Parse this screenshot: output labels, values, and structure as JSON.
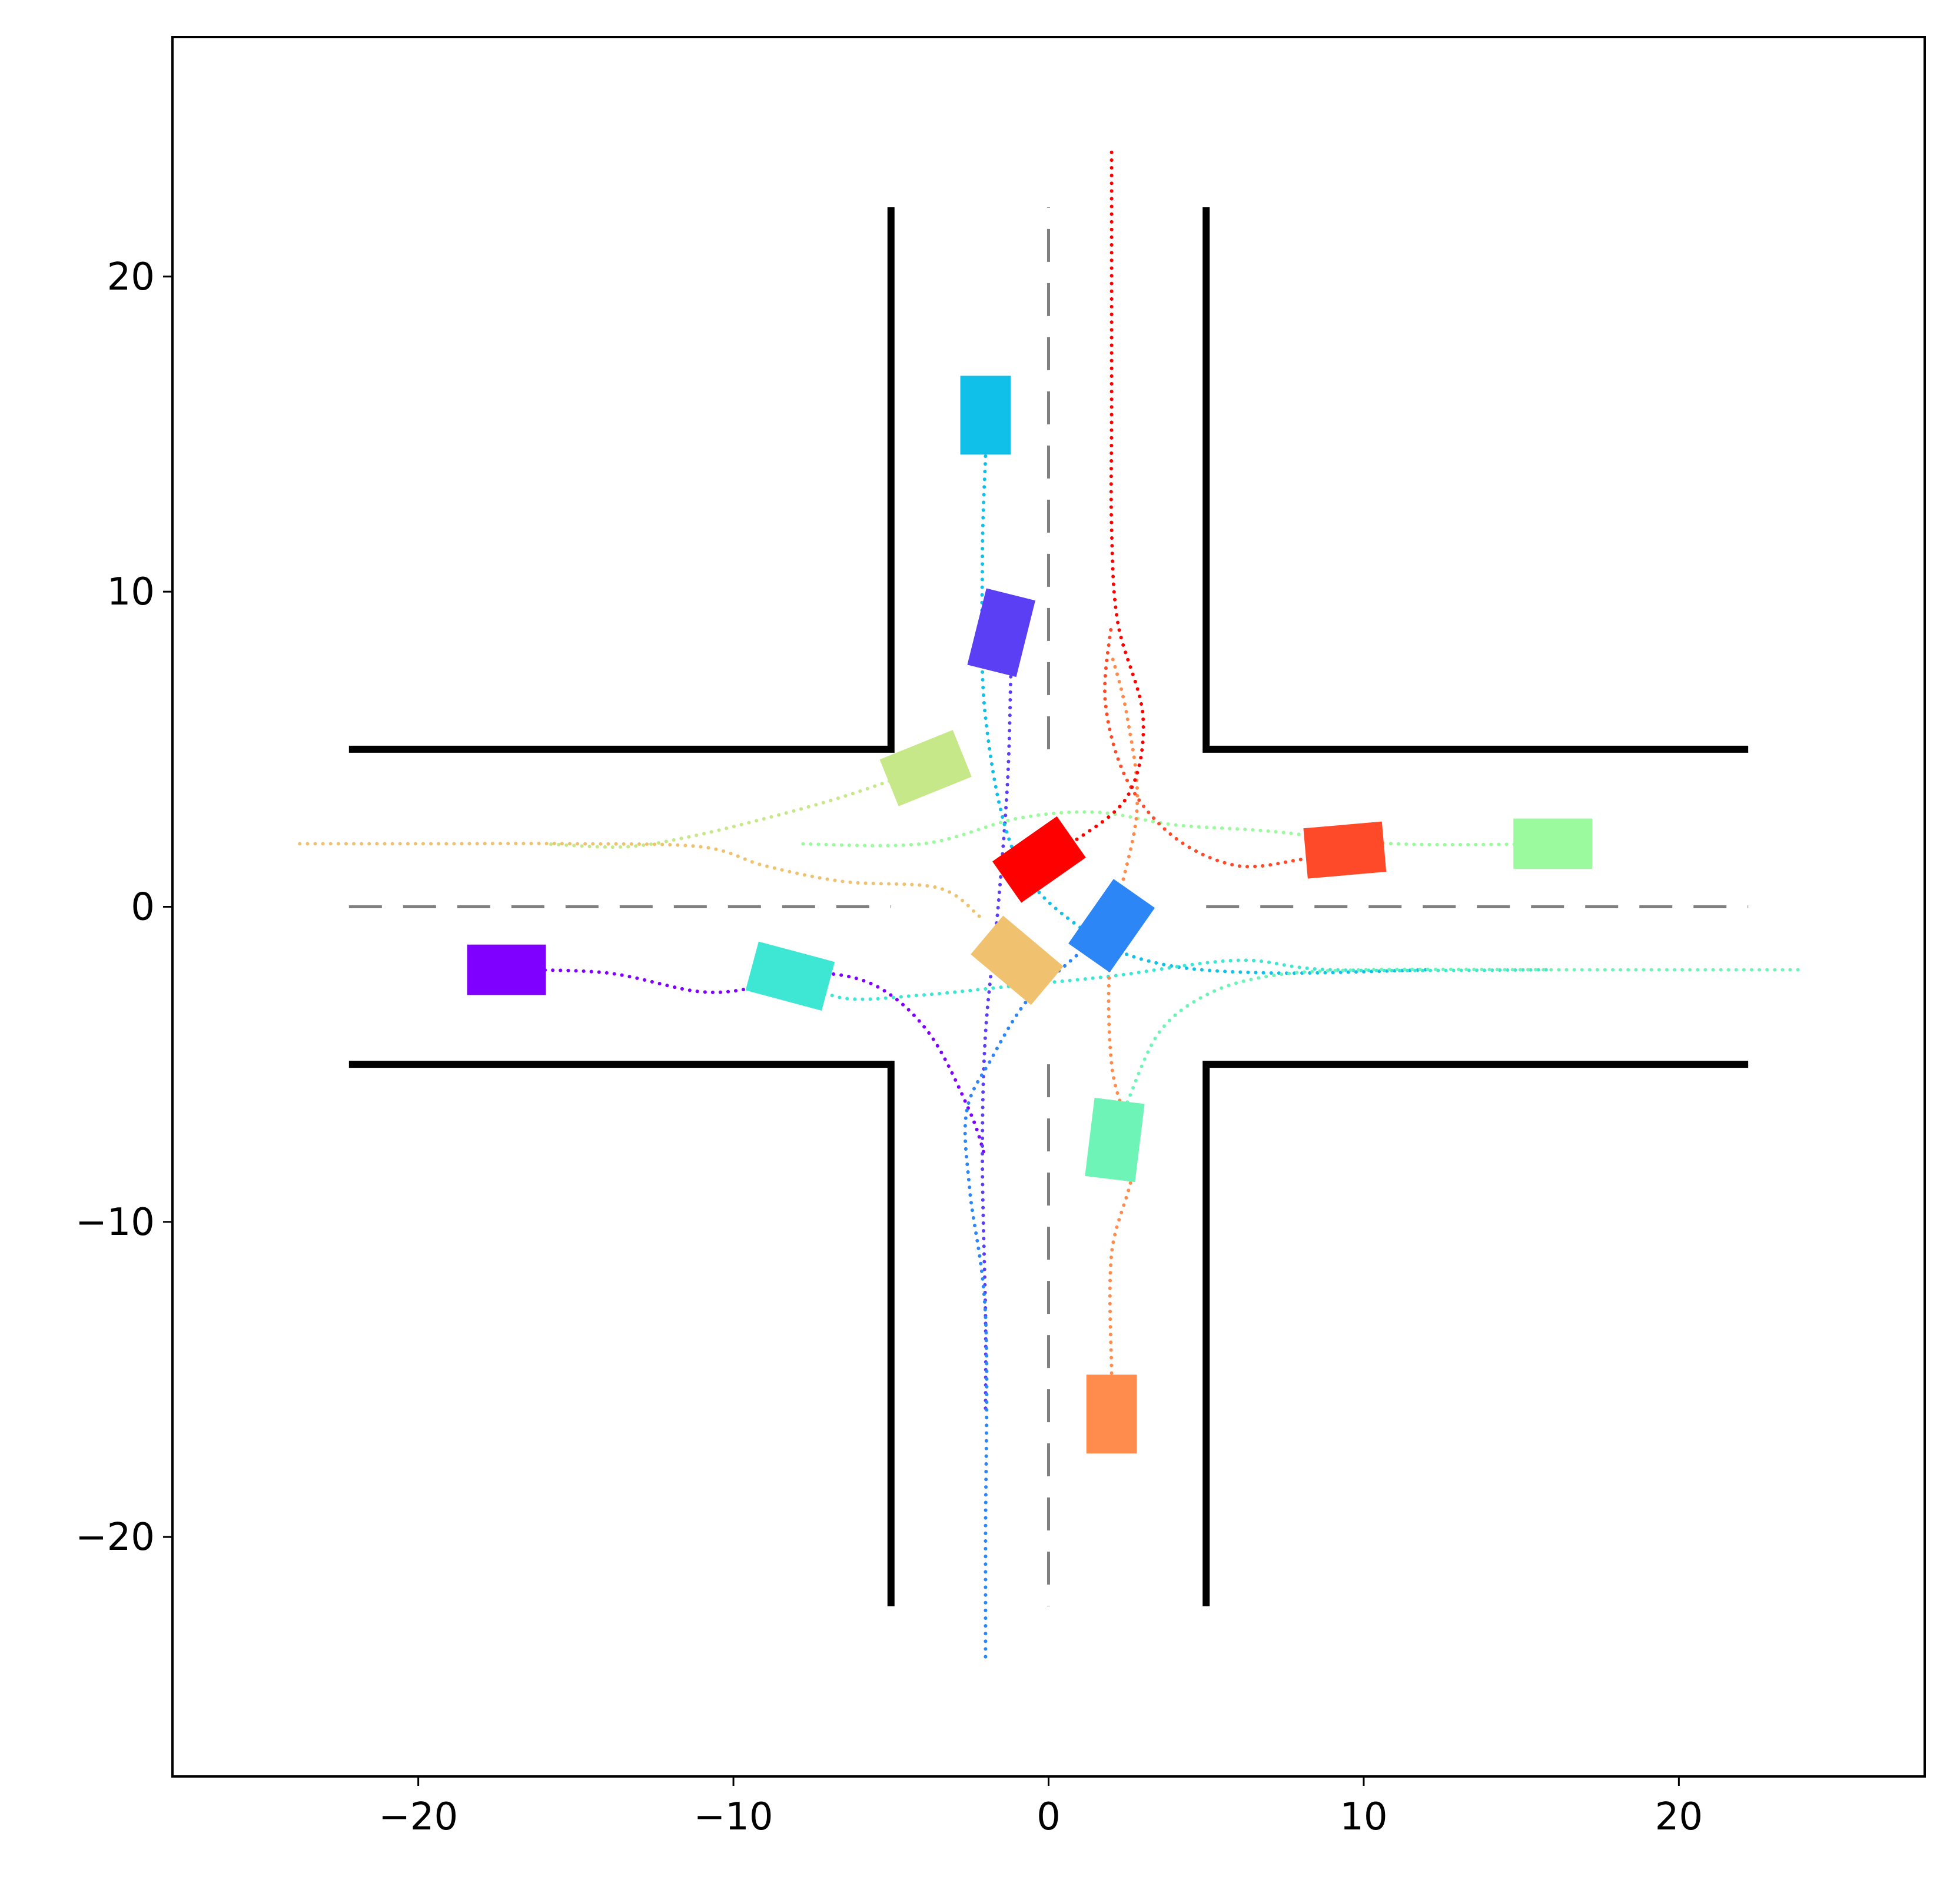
{
  "chart_data": {
    "type": "scatter",
    "title": "",
    "xlabel": "",
    "ylabel": "",
    "xlim": [
      -27.8,
      27.8
    ],
    "ylim": [
      -27.6,
      27.6
    ],
    "grid": false,
    "x_ticks": [
      -20,
      -10,
      0,
      10,
      20
    ],
    "y_ticks": [
      -20,
      -10,
      0,
      10,
      20
    ],
    "x_tick_labels": [
      "−20",
      "−10",
      "0",
      "10",
      "20"
    ],
    "y_tick_labels": [
      "−20",
      "−10",
      "0",
      "10",
      "20"
    ],
    "road_edges": [
      {
        "points": [
          [
            -22.2,
            5
          ],
          [
            -5,
            5
          ],
          [
            -5,
            22.2
          ]
        ]
      },
      {
        "points": [
          [
            5,
            22.2
          ],
          [
            5,
            5
          ],
          [
            22.2,
            5
          ]
        ]
      },
      {
        "points": [
          [
            -22.2,
            -5
          ],
          [
            -5,
            -5
          ],
          [
            -5,
            -22.2
          ]
        ]
      },
      {
        "points": [
          [
            5,
            -22.2
          ],
          [
            5,
            -5
          ],
          [
            22.2,
            -5
          ]
        ]
      }
    ],
    "center_lines": [
      {
        "points": [
          [
            -22.2,
            0
          ],
          [
            -5,
            0
          ]
        ]
      },
      {
        "points": [
          [
            5,
            0
          ],
          [
            22.2,
            0
          ]
        ]
      },
      {
        "points": [
          [
            0,
            5
          ],
          [
            0,
            22.2
          ]
        ]
      },
      {
        "points": [
          [
            0,
            -5
          ],
          [
            0,
            -22.2
          ]
        ]
      }
    ],
    "colors": {
      "road_edge": "#000000",
      "center_line": "#808080"
    },
    "vehicles": [
      {
        "color": "#8000ff",
        "center": [
          -17.2,
          -2.0
        ],
        "heading": 0,
        "path": [
          [
            -17.2,
            -2.0
          ],
          [
            -14,
            -2.1
          ],
          [
            -11,
            -2.7
          ],
          [
            -9,
            -2.5
          ],
          [
            -7.5,
            -2.1
          ],
          [
            -5.5,
            -2.5
          ],
          [
            -3.8,
            -4.0
          ],
          [
            -2.5,
            -6.5
          ],
          [
            -2.0,
            -8.0
          ]
        ]
      },
      {
        "color": "#5a3ff5",
        "center": [
          -1.5,
          8.7
        ],
        "heading": 76,
        "path": [
          [
            -1.2,
            7.3
          ],
          [
            -1.3,
            4.0
          ],
          [
            -1.6,
            0.0
          ],
          [
            -2.0,
            -4.0
          ],
          [
            -2.1,
            -8.0
          ],
          [
            -2.0,
            -13.0
          ],
          [
            -2.0,
            -16.0
          ]
        ]
      },
      {
        "color": "#2d86f5",
        "center": [
          2.0,
          -0.6
        ],
        "heading": 55,
        "path": [
          [
            2.0,
            -0.6
          ],
          [
            0.6,
            -1.8
          ],
          [
            -0.7,
            -3.0
          ],
          [
            -1.8,
            -4.8
          ],
          [
            -2.6,
            -6.5
          ],
          [
            -2.5,
            -9.0
          ],
          [
            -2.0,
            -13.0
          ],
          [
            -2.0,
            -20.0
          ],
          [
            -2.0,
            -24.0
          ]
        ]
      },
      {
        "color": "#10c0e8",
        "center": [
          -2.0,
          15.6
        ],
        "heading": 90,
        "path": [
          [
            -2.0,
            14.3
          ],
          [
            -2.1,
            11.0
          ],
          [
            -2.0,
            6.0
          ],
          [
            -1.0,
            1.5
          ],
          [
            1.2,
            -0.8
          ],
          [
            3.5,
            -1.8
          ],
          [
            7.0,
            -2.1
          ],
          [
            12.0,
            -2.0
          ]
        ]
      },
      {
        "color": "#3ee6d4",
        "center": [
          -8.2,
          -2.2
        ],
        "heading": -15,
        "path": [
          [
            -8.2,
            -2.2
          ],
          [
            -6.5,
            -2.9
          ],
          [
            -4.0,
            -2.8
          ],
          [
            -1.0,
            -2.5
          ],
          [
            2.0,
            -2.2
          ],
          [
            6.0,
            -1.7
          ],
          [
            9.0,
            -2.0
          ],
          [
            16.0,
            -2.0
          ]
        ]
      },
      {
        "color": "#6ef4b7",
        "center": [
          2.1,
          -7.4
        ],
        "heading": 83,
        "path": [
          [
            2.5,
            -6.2
          ],
          [
            3.5,
            -4.0
          ],
          [
            5.0,
            -2.8
          ],
          [
            7.0,
            -2.2
          ],
          [
            10.0,
            -2.0
          ],
          [
            16.0,
            -2.0
          ],
          [
            24.0,
            -2.0
          ]
        ]
      },
      {
        "color": "#9afa9d",
        "center": [
          16.0,
          2.0
        ],
        "heading": 0,
        "path": [
          [
            16.0,
            2.0
          ],
          [
            11.0,
            2.0
          ],
          [
            7.0,
            2.4
          ],
          [
            4.0,
            2.6
          ],
          [
            1.5,
            3.0
          ],
          [
            -1.0,
            2.8
          ],
          [
            -4.0,
            2.0
          ],
          [
            -8.0,
            2.0
          ]
        ]
      },
      {
        "color": "#c6e888",
        "center": [
          -3.9,
          4.4
        ],
        "heading": 22,
        "path": [
          [
            -3.9,
            4.4
          ],
          [
            -6.5,
            3.5
          ],
          [
            -9.0,
            2.8
          ],
          [
            -11.5,
            2.2
          ],
          [
            -13.5,
            1.9
          ],
          [
            -16.0,
            2.0
          ]
        ]
      },
      {
        "color": "#f0c270",
        "center": [
          -1.0,
          -1.7
        ],
        "heading": -40,
        "path": [
          [
            -2.2,
            -0.3
          ],
          [
            -3.5,
            0.6
          ],
          [
            -6.5,
            0.8
          ],
          [
            -9.0,
            1.3
          ],
          [
            -11.0,
            1.9
          ],
          [
            -15.0,
            2.0
          ],
          [
            -20.0,
            2.0
          ],
          [
            -24.0,
            2.0
          ]
        ]
      },
      {
        "color": "#ff8c4d",
        "center": [
          2.0,
          -16.1
        ],
        "heading": 90,
        "path": [
          [
            2.0,
            -14.8
          ],
          [
            2.0,
            -11.0
          ],
          [
            2.7,
            -8.0
          ],
          [
            2.0,
            -5.0
          ],
          [
            2.0,
            -1.0
          ],
          [
            2.8,
            3.0
          ],
          [
            2.5,
            6.0
          ],
          [
            2.0,
            8.0
          ]
        ]
      },
      {
        "color": "#ff4a2a",
        "center": [
          9.4,
          1.8
        ],
        "heading": 5,
        "path": [
          [
            8.0,
            1.5
          ],
          [
            6.0,
            1.3
          ],
          [
            4.0,
            2.2
          ],
          [
            2.5,
            4.0
          ],
          [
            1.8,
            6.5
          ],
          [
            2.0,
            9.0
          ]
        ]
      },
      {
        "color": "#ff0000",
        "center": [
          -0.3,
          1.5
        ],
        "heading": 35,
        "path": [
          [
            0.7,
            2.0
          ],
          [
            2.5,
            3.5
          ],
          [
            3.0,
            6.0
          ],
          [
            2.2,
            9.0
          ],
          [
            2.0,
            12.0
          ],
          [
            2.0,
            16.0
          ],
          [
            2.0,
            24.0
          ]
        ]
      }
    ]
  }
}
